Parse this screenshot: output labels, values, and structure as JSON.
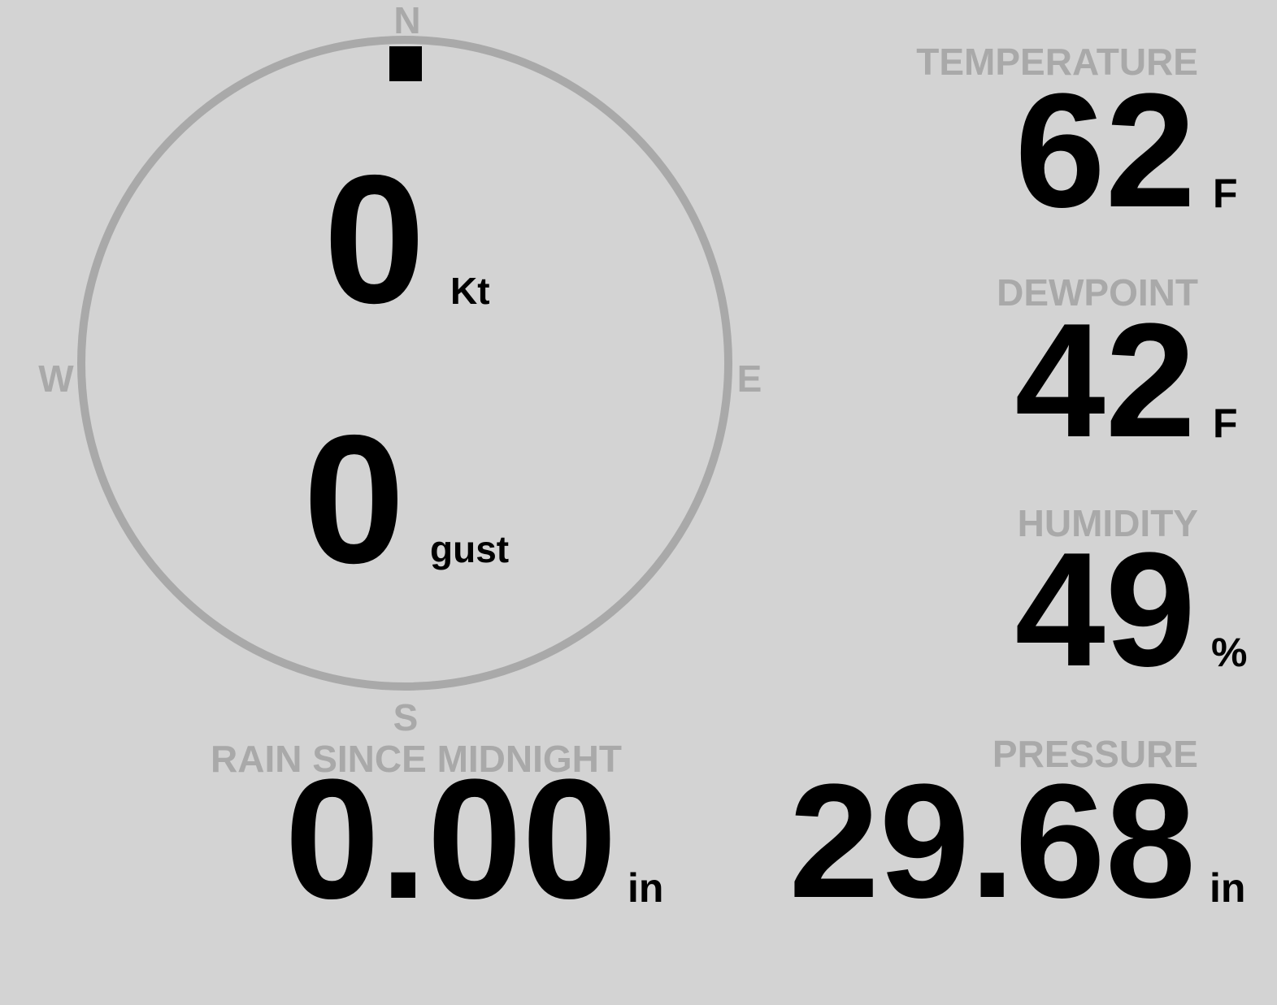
{
  "compass": {
    "north": "N",
    "south": "S",
    "east": "E",
    "west": "W",
    "wind_direction_deg": 0,
    "ring_color": "#a9a9a9",
    "marker_color": "#000000"
  },
  "wind": {
    "speed": "0",
    "speed_unit": "Kt",
    "gust": "0",
    "gust_unit": "gust"
  },
  "temperature": {
    "label": "TEMPERATURE",
    "value": "62",
    "unit": "F"
  },
  "dewpoint": {
    "label": "DEWPOINT",
    "value": "42",
    "unit": "F"
  },
  "humidity": {
    "label": "HUMIDITY",
    "value": "49",
    "unit": "%"
  },
  "pressure": {
    "label": "PRESSURE",
    "value": "29.68",
    "unit": "in"
  },
  "rain": {
    "label": "RAIN SINCE MIDNIGHT",
    "value": "0.00",
    "unit": "in"
  },
  "colors": {
    "background": "#d3d3d3",
    "label": "#a9a9a9",
    "value": "#000000"
  }
}
